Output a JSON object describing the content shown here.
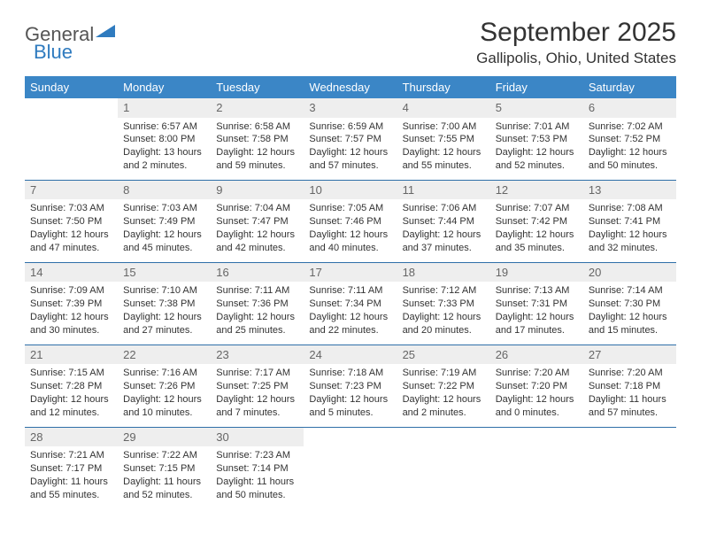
{
  "logo": {
    "text1": "General",
    "text2": "Blue"
  },
  "title": "September 2025",
  "location": "Gallipolis, Ohio, United States",
  "colors": {
    "header_bg": "#3b86c6",
    "header_text": "#ffffff",
    "row_divider": "#2f6fa8",
    "daynum_bg": "#eeeeee",
    "daynum_text": "#666666",
    "body_text": "#333333",
    "logo_blue": "#2f7bbf",
    "logo_gray": "#555555"
  },
  "fonts": {
    "title_size": 30,
    "location_size": 17,
    "header_size": 13,
    "cell_size": 11
  },
  "day_headers": [
    "Sunday",
    "Monday",
    "Tuesday",
    "Wednesday",
    "Thursday",
    "Friday",
    "Saturday"
  ],
  "weeks": [
    [
      null,
      {
        "n": "1",
        "sr": "Sunrise: 6:57 AM",
        "ss": "Sunset: 8:00 PM",
        "d1": "Daylight: 13 hours",
        "d2": "and 2 minutes."
      },
      {
        "n": "2",
        "sr": "Sunrise: 6:58 AM",
        "ss": "Sunset: 7:58 PM",
        "d1": "Daylight: 12 hours",
        "d2": "and 59 minutes."
      },
      {
        "n": "3",
        "sr": "Sunrise: 6:59 AM",
        "ss": "Sunset: 7:57 PM",
        "d1": "Daylight: 12 hours",
        "d2": "and 57 minutes."
      },
      {
        "n": "4",
        "sr": "Sunrise: 7:00 AM",
        "ss": "Sunset: 7:55 PM",
        "d1": "Daylight: 12 hours",
        "d2": "and 55 minutes."
      },
      {
        "n": "5",
        "sr": "Sunrise: 7:01 AM",
        "ss": "Sunset: 7:53 PM",
        "d1": "Daylight: 12 hours",
        "d2": "and 52 minutes."
      },
      {
        "n": "6",
        "sr": "Sunrise: 7:02 AM",
        "ss": "Sunset: 7:52 PM",
        "d1": "Daylight: 12 hours",
        "d2": "and 50 minutes."
      }
    ],
    [
      {
        "n": "7",
        "sr": "Sunrise: 7:03 AM",
        "ss": "Sunset: 7:50 PM",
        "d1": "Daylight: 12 hours",
        "d2": "and 47 minutes."
      },
      {
        "n": "8",
        "sr": "Sunrise: 7:03 AM",
        "ss": "Sunset: 7:49 PM",
        "d1": "Daylight: 12 hours",
        "d2": "and 45 minutes."
      },
      {
        "n": "9",
        "sr": "Sunrise: 7:04 AM",
        "ss": "Sunset: 7:47 PM",
        "d1": "Daylight: 12 hours",
        "d2": "and 42 minutes."
      },
      {
        "n": "10",
        "sr": "Sunrise: 7:05 AM",
        "ss": "Sunset: 7:46 PM",
        "d1": "Daylight: 12 hours",
        "d2": "and 40 minutes."
      },
      {
        "n": "11",
        "sr": "Sunrise: 7:06 AM",
        "ss": "Sunset: 7:44 PM",
        "d1": "Daylight: 12 hours",
        "d2": "and 37 minutes."
      },
      {
        "n": "12",
        "sr": "Sunrise: 7:07 AM",
        "ss": "Sunset: 7:42 PM",
        "d1": "Daylight: 12 hours",
        "d2": "and 35 minutes."
      },
      {
        "n": "13",
        "sr": "Sunrise: 7:08 AM",
        "ss": "Sunset: 7:41 PM",
        "d1": "Daylight: 12 hours",
        "d2": "and 32 minutes."
      }
    ],
    [
      {
        "n": "14",
        "sr": "Sunrise: 7:09 AM",
        "ss": "Sunset: 7:39 PM",
        "d1": "Daylight: 12 hours",
        "d2": "and 30 minutes."
      },
      {
        "n": "15",
        "sr": "Sunrise: 7:10 AM",
        "ss": "Sunset: 7:38 PM",
        "d1": "Daylight: 12 hours",
        "d2": "and 27 minutes."
      },
      {
        "n": "16",
        "sr": "Sunrise: 7:11 AM",
        "ss": "Sunset: 7:36 PM",
        "d1": "Daylight: 12 hours",
        "d2": "and 25 minutes."
      },
      {
        "n": "17",
        "sr": "Sunrise: 7:11 AM",
        "ss": "Sunset: 7:34 PM",
        "d1": "Daylight: 12 hours",
        "d2": "and 22 minutes."
      },
      {
        "n": "18",
        "sr": "Sunrise: 7:12 AM",
        "ss": "Sunset: 7:33 PM",
        "d1": "Daylight: 12 hours",
        "d2": "and 20 minutes."
      },
      {
        "n": "19",
        "sr": "Sunrise: 7:13 AM",
        "ss": "Sunset: 7:31 PM",
        "d1": "Daylight: 12 hours",
        "d2": "and 17 minutes."
      },
      {
        "n": "20",
        "sr": "Sunrise: 7:14 AM",
        "ss": "Sunset: 7:30 PM",
        "d1": "Daylight: 12 hours",
        "d2": "and 15 minutes."
      }
    ],
    [
      {
        "n": "21",
        "sr": "Sunrise: 7:15 AM",
        "ss": "Sunset: 7:28 PM",
        "d1": "Daylight: 12 hours",
        "d2": "and 12 minutes."
      },
      {
        "n": "22",
        "sr": "Sunrise: 7:16 AM",
        "ss": "Sunset: 7:26 PM",
        "d1": "Daylight: 12 hours",
        "d2": "and 10 minutes."
      },
      {
        "n": "23",
        "sr": "Sunrise: 7:17 AM",
        "ss": "Sunset: 7:25 PM",
        "d1": "Daylight: 12 hours",
        "d2": "and 7 minutes."
      },
      {
        "n": "24",
        "sr": "Sunrise: 7:18 AM",
        "ss": "Sunset: 7:23 PM",
        "d1": "Daylight: 12 hours",
        "d2": "and 5 minutes."
      },
      {
        "n": "25",
        "sr": "Sunrise: 7:19 AM",
        "ss": "Sunset: 7:22 PM",
        "d1": "Daylight: 12 hours",
        "d2": "and 2 minutes."
      },
      {
        "n": "26",
        "sr": "Sunrise: 7:20 AM",
        "ss": "Sunset: 7:20 PM",
        "d1": "Daylight: 12 hours",
        "d2": "and 0 minutes."
      },
      {
        "n": "27",
        "sr": "Sunrise: 7:20 AM",
        "ss": "Sunset: 7:18 PM",
        "d1": "Daylight: 11 hours",
        "d2": "and 57 minutes."
      }
    ],
    [
      {
        "n": "28",
        "sr": "Sunrise: 7:21 AM",
        "ss": "Sunset: 7:17 PM",
        "d1": "Daylight: 11 hours",
        "d2": "and 55 minutes."
      },
      {
        "n": "29",
        "sr": "Sunrise: 7:22 AM",
        "ss": "Sunset: 7:15 PM",
        "d1": "Daylight: 11 hours",
        "d2": "and 52 minutes."
      },
      {
        "n": "30",
        "sr": "Sunrise: 7:23 AM",
        "ss": "Sunset: 7:14 PM",
        "d1": "Daylight: 11 hours",
        "d2": "and 50 minutes."
      },
      null,
      null,
      null,
      null
    ]
  ]
}
